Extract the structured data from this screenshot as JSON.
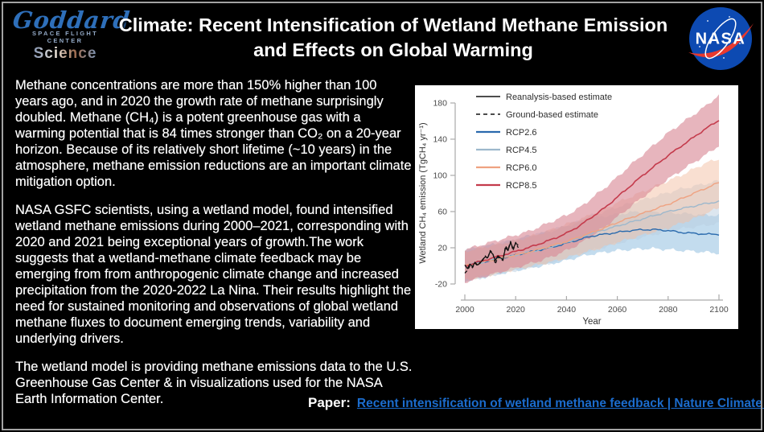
{
  "page": {
    "background": "#000000",
    "frame_color": "#a3a3a3"
  },
  "header": {
    "goddard": {
      "script": "Goddard",
      "subtitle": "SPACE FLIGHT CENTER",
      "science": "Science"
    },
    "title": "Climate: Recent Intensification of Wetland Methane Emission and Effects on Global Warming",
    "nasa_wordmark": "NASA",
    "nasa_blue": "#0d4ab2",
    "nasa_red": "#e8392e"
  },
  "body": {
    "paragraphs": [
      "Methane concentrations are more than 150% higher than 100 years ago, and in 2020 the growth rate of methane surprisingly doubled. Methane (CH₄) is a potent greenhouse gas with a warming potential that is 84 times stronger than CO₂ on a 20-year horizon. Because of its relatively short lifetime (~10 years) in the atmosphere, methane emission reductions are an important climate mitigation option.",
      "NASA GSFC scientists, using a wetland model, found intensified wetland methane emissions during 2000–2021, corresponding with 2020 and 2021 being exceptional years of growth.The work suggests that a wetland-methane climate feedback may be emerging from from anthropogenic climate change and increased precipitation from the 2020-2022 La Nina. Their results highlight the need for sustained monitoring and observations of global wetland methane fluxes to document emerging trends, variability and underlying drivers.",
      "The wetland model is providing methane emissions data to the U.S. Greenhouse Gas Center & in visualizations used for the NASA Earth Information Center."
    ]
  },
  "footer": {
    "paper_label": "Paper:",
    "paper_link": "Recent intensification of wetland methane feedback | Nature Climate Change",
    "link_color": "#1b6ccd"
  },
  "chart_data": {
    "type": "line",
    "title": "",
    "xlabel": "Year",
    "ylabel": "Wetland CH₄ emission (TgCH₄ yr⁻¹)",
    "xlim": [
      2000,
      2100
    ],
    "ylim": [
      -33,
      192
    ],
    "xticks": [
      2000,
      2020,
      2040,
      2060,
      2080,
      2100
    ],
    "yticks": [
      -20,
      20,
      60,
      100,
      140,
      180
    ],
    "grid": false,
    "legend_position": "top-left",
    "observations": [
      {
        "name": "Reanalysis-based estimate",
        "style": "solid",
        "color": "#121212",
        "x_start": 2000,
        "values": [
          1,
          -3,
          2,
          -1,
          4,
          1,
          3,
          7,
          10,
          9,
          16,
          13,
          6,
          11,
          9,
          7,
          20,
          17,
          26,
          19,
          25,
          23
        ]
      },
      {
        "name": "Ground-based estimate",
        "style": "dashed",
        "color": "#121212",
        "x_start": 2000,
        "values": [
          -8,
          -5,
          0,
          -2,
          3,
          0,
          4,
          6,
          11,
          8,
          17,
          14,
          2,
          10,
          8,
          6,
          22,
          18,
          27,
          17,
          26,
          20
        ]
      }
    ],
    "scenarios": [
      {
        "name": "RCP2.6",
        "color": "#2a6aad",
        "band_color": "#92bfe0",
        "band_opacity": 0.55,
        "x": [
          2000,
          2005,
          2010,
          2015,
          2020,
          2025,
          2030,
          2035,
          2040,
          2045,
          2050,
          2055,
          2060,
          2065,
          2070,
          2075,
          2080,
          2085,
          2090,
          2095,
          2100
        ],
        "values": [
          0,
          3,
          6,
          9,
          12,
          15,
          18,
          21,
          25,
          29,
          33,
          35,
          37,
          39,
          40,
          40,
          39,
          37,
          36,
          35,
          35
        ],
        "lower": [
          -17,
          -14,
          -11,
          -8,
          -5,
          -3,
          0,
          3,
          6,
          10,
          13,
          15,
          17,
          18,
          19,
          19,
          18,
          17,
          16,
          15,
          14
        ],
        "upper": [
          17,
          20,
          23,
          26,
          29,
          33,
          36,
          39,
          44,
          48,
          53,
          55,
          57,
          59,
          60,
          60,
          59,
          58,
          57,
          56,
          56
        ]
      },
      {
        "name": "RCP4.5",
        "color": "#9db8cc",
        "band_color": "#b9cedf",
        "band_opacity": 0.5,
        "x": [
          2000,
          2005,
          2010,
          2015,
          2020,
          2025,
          2030,
          2035,
          2040,
          2045,
          2050,
          2055,
          2060,
          2065,
          2070,
          2075,
          2080,
          2085,
          2090,
          2095,
          2100
        ],
        "values": [
          0,
          3,
          6,
          9,
          12,
          15,
          18,
          22,
          26,
          31,
          36,
          40,
          44,
          48,
          52,
          56,
          60,
          63,
          66,
          69,
          71
        ],
        "lower": [
          -17,
          -14,
          -11,
          -8,
          -5,
          -2,
          1,
          4,
          8,
          13,
          17,
          21,
          25,
          28,
          32,
          35,
          38,
          41,
          43,
          45,
          47
        ],
        "upper": [
          17,
          20,
          23,
          26,
          29,
          32,
          36,
          40,
          45,
          50,
          56,
          60,
          65,
          69,
          73,
          77,
          81,
          85,
          88,
          91,
          94
        ]
      },
      {
        "name": "RCP6.0",
        "color": "#efa281",
        "band_color": "#f3c0a4",
        "band_opacity": 0.5,
        "x": [
          2000,
          2005,
          2010,
          2015,
          2020,
          2025,
          2030,
          2035,
          2040,
          2045,
          2050,
          2055,
          2060,
          2065,
          2070,
          2075,
          2080,
          2085,
          2090,
          2095,
          2100
        ],
        "values": [
          0,
          3,
          6,
          9,
          12,
          15,
          19,
          23,
          27,
          32,
          37,
          42,
          48,
          53,
          58,
          63,
          68,
          74,
          80,
          86,
          92
        ],
        "lower": [
          -16,
          -13,
          -10,
          -7,
          -4,
          -1,
          2,
          5,
          9,
          13,
          17,
          21,
          26,
          30,
          34,
          38,
          42,
          47,
          52,
          58,
          64
        ],
        "upper": [
          16,
          19,
          22,
          25,
          28,
          32,
          36,
          41,
          46,
          51,
          57,
          63,
          70,
          76,
          82,
          88,
          94,
          100,
          107,
          114,
          118
        ]
      },
      {
        "name": "RCP8.5",
        "color": "#c43b4c",
        "band_color": "#d98795",
        "band_opacity": 0.62,
        "x": [
          2000,
          2005,
          2010,
          2015,
          2020,
          2025,
          2030,
          2035,
          2040,
          2045,
          2050,
          2055,
          2060,
          2065,
          2070,
          2075,
          2080,
          2085,
          2090,
          2095,
          2100
        ],
        "values": [
          0,
          4,
          8,
          12,
          16,
          20,
          25,
          30,
          36,
          44,
          54,
          64,
          76,
          88,
          100,
          111,
          122,
          132,
          142,
          152,
          161
        ],
        "lower": [
          -18,
          -14,
          -10,
          -6,
          -2,
          2,
          6,
          11,
          17,
          24,
          33,
          43,
          54,
          65,
          76,
          86,
          96,
          105,
          114,
          123,
          133
        ],
        "upper": [
          18,
          22,
          26,
          30,
          34,
          38,
          44,
          50,
          56,
          64,
          75,
          86,
          98,
          111,
          123,
          135,
          147,
          157,
          167,
          177,
          189
        ]
      }
    ]
  }
}
